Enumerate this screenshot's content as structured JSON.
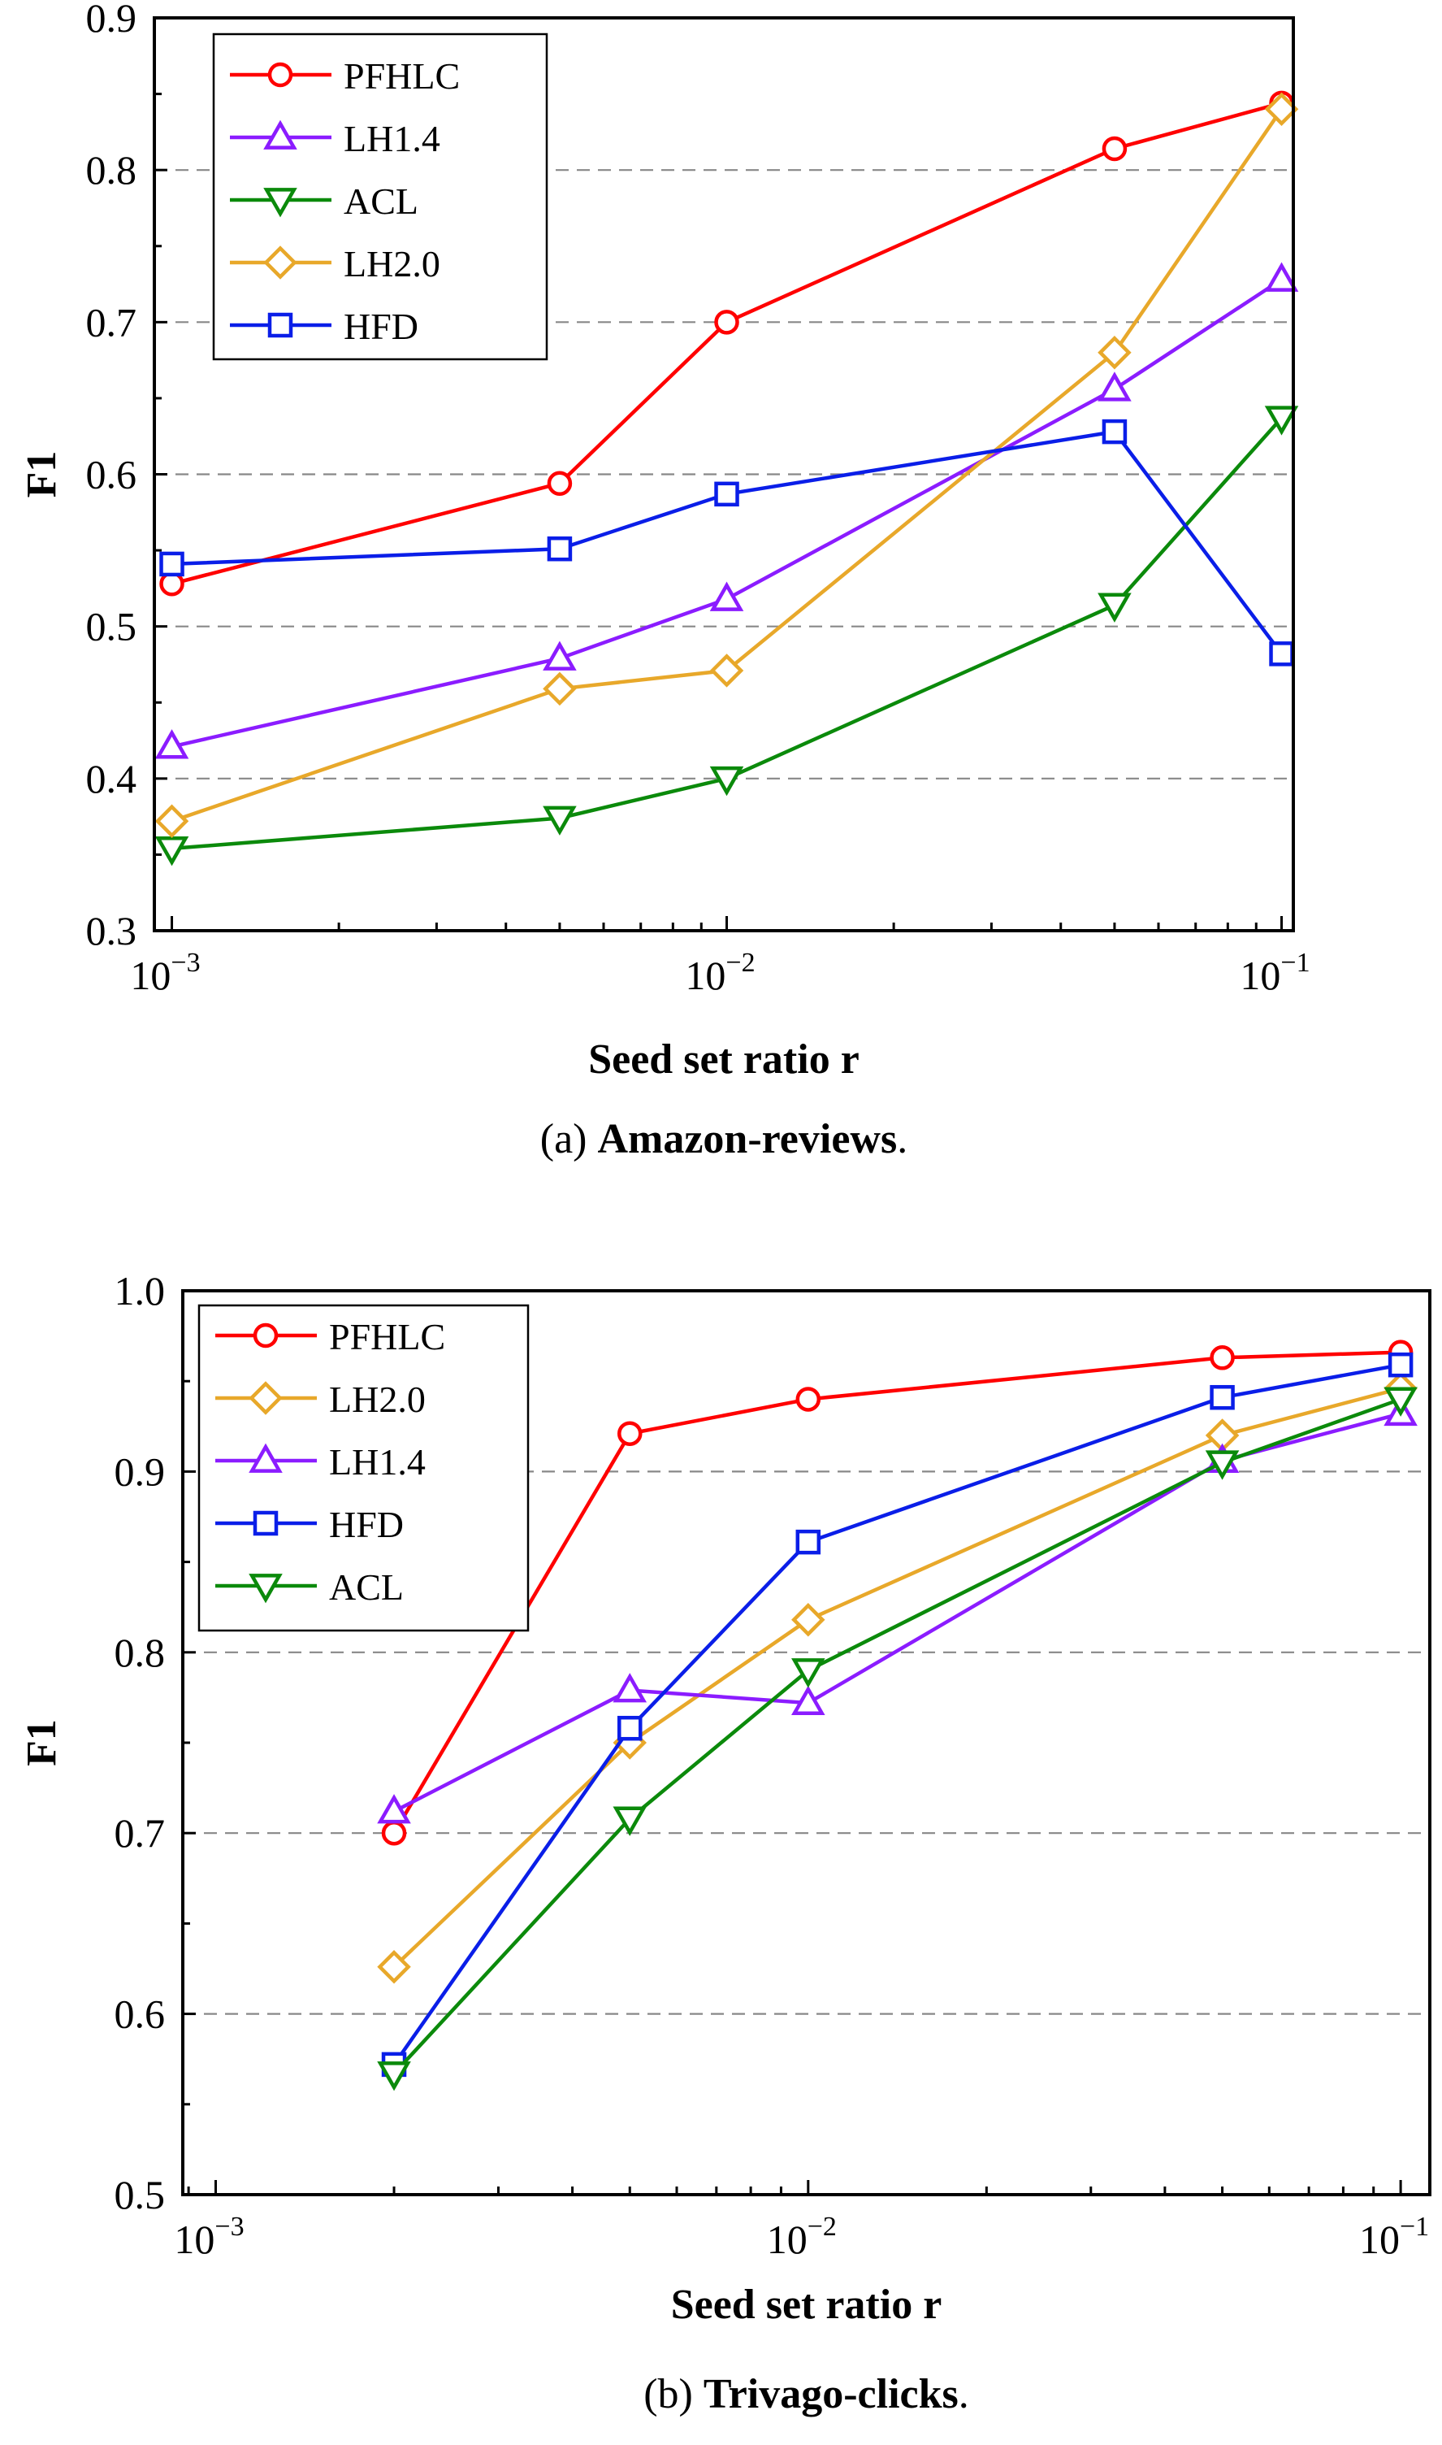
{
  "chart_data": [
    {
      "type": "line",
      "caption_prefix": "(a)",
      "caption_title": "Amazon-reviews",
      "caption_suffix": ".",
      "xlabel": "Seed set ratio r",
      "ylabel": "F1",
      "x_scale": "log",
      "xlim": [
        0.00093,
        0.105
      ],
      "ylim": [
        0.3,
        0.9
      ],
      "yticks": [
        "0.3",
        "0.4",
        "0.5",
        "0.6",
        "0.7",
        "0.8",
        "0.9"
      ],
      "xticks": [
        {
          "value": 0.001,
          "base": "10",
          "exp": "-3"
        },
        {
          "value": 0.01,
          "base": "10",
          "exp": "-2"
        },
        {
          "value": 0.1,
          "base": "10",
          "exp": "-1"
        }
      ],
      "grid": "horizontal dashed",
      "legend_position": "top-left",
      "series": [
        {
          "name": "PFHLC",
          "color": "#ff0000",
          "marker": "circle",
          "x": [
            0.001,
            0.005,
            0.01,
            0.05,
            0.1
          ],
          "y": [
            0.528,
            0.594,
            0.7,
            0.814,
            0.844
          ]
        },
        {
          "name": "LH1.4",
          "color": "#8b1cff",
          "marker": "triangle-up",
          "x": [
            0.001,
            0.005,
            0.01,
            0.05,
            0.1
          ],
          "y": [
            0.421,
            0.479,
            0.518,
            0.656,
            0.728
          ]
        },
        {
          "name": "ACL",
          "color": "#0b8a0b",
          "marker": "triangle-down",
          "x": [
            0.001,
            0.005,
            0.01,
            0.05,
            0.1
          ],
          "y": [
            0.354,
            0.374,
            0.4,
            0.514,
            0.637
          ]
        },
        {
          "name": "LH2.0",
          "color": "#e8a82a",
          "marker": "diamond",
          "x": [
            0.001,
            0.005,
            0.01,
            0.05,
            0.1
          ],
          "y": [
            0.372,
            0.459,
            0.471,
            0.68,
            0.84
          ]
        },
        {
          "name": "HFD",
          "color": "#0a1ee8",
          "marker": "square",
          "x": [
            0.001,
            0.005,
            0.01,
            0.05,
            0.1
          ],
          "y": [
            0.541,
            0.551,
            0.587,
            0.628,
            0.482
          ]
        }
      ]
    },
    {
      "type": "line",
      "caption_prefix": "(b)",
      "caption_title": "Trivago-clicks",
      "caption_suffix": ".",
      "xlabel": "Seed set ratio r",
      "ylabel": "F1",
      "x_scale": "log",
      "xlim": [
        0.00088,
        0.112
      ],
      "ylim": [
        0.5,
        1.0
      ],
      "yticks": [
        "0.5",
        "0.6",
        "0.7",
        "0.8",
        "0.9",
        "1.0"
      ],
      "xticks": [
        {
          "value": 0.001,
          "base": "10",
          "exp": "-3"
        },
        {
          "value": 0.01,
          "base": "10",
          "exp": "-2"
        },
        {
          "value": 0.1,
          "base": "10",
          "exp": "-1"
        }
      ],
      "grid": "horizontal dashed",
      "legend_position": "top-left",
      "series": [
        {
          "name": "PFHLC",
          "color": "#ff0000",
          "marker": "circle",
          "x": [
            0.002,
            0.005,
            0.01,
            0.05,
            0.1
          ],
          "y": [
            0.7,
            0.921,
            0.94,
            0.963,
            0.966
          ]
        },
        {
          "name": "LH2.0",
          "color": "#e8a82a",
          "marker": "diamond",
          "x": [
            0.002,
            0.005,
            0.01,
            0.05,
            0.1
          ],
          "y": [
            0.626,
            0.75,
            0.818,
            0.92,
            0.946
          ]
        },
        {
          "name": "LH1.4",
          "color": "#8b1cff",
          "marker": "triangle-up",
          "x": [
            0.002,
            0.005,
            0.01,
            0.05,
            0.1
          ],
          "y": [
            0.712,
            0.779,
            0.772,
            0.906,
            0.932
          ]
        },
        {
          "name": "HFD",
          "color": "#0a1ee8",
          "marker": "square",
          "x": [
            0.002,
            0.005,
            0.01,
            0.05,
            0.1
          ],
          "y": [
            0.572,
            0.758,
            0.861,
            0.941,
            0.959
          ]
        },
        {
          "name": "ACL",
          "color": "#0b8a0b",
          "marker": "triangle-down",
          "x": [
            0.002,
            0.005,
            0.01,
            0.05,
            0.1
          ],
          "y": [
            0.567,
            0.708,
            0.79,
            0.905,
            0.94
          ]
        }
      ]
    }
  ]
}
